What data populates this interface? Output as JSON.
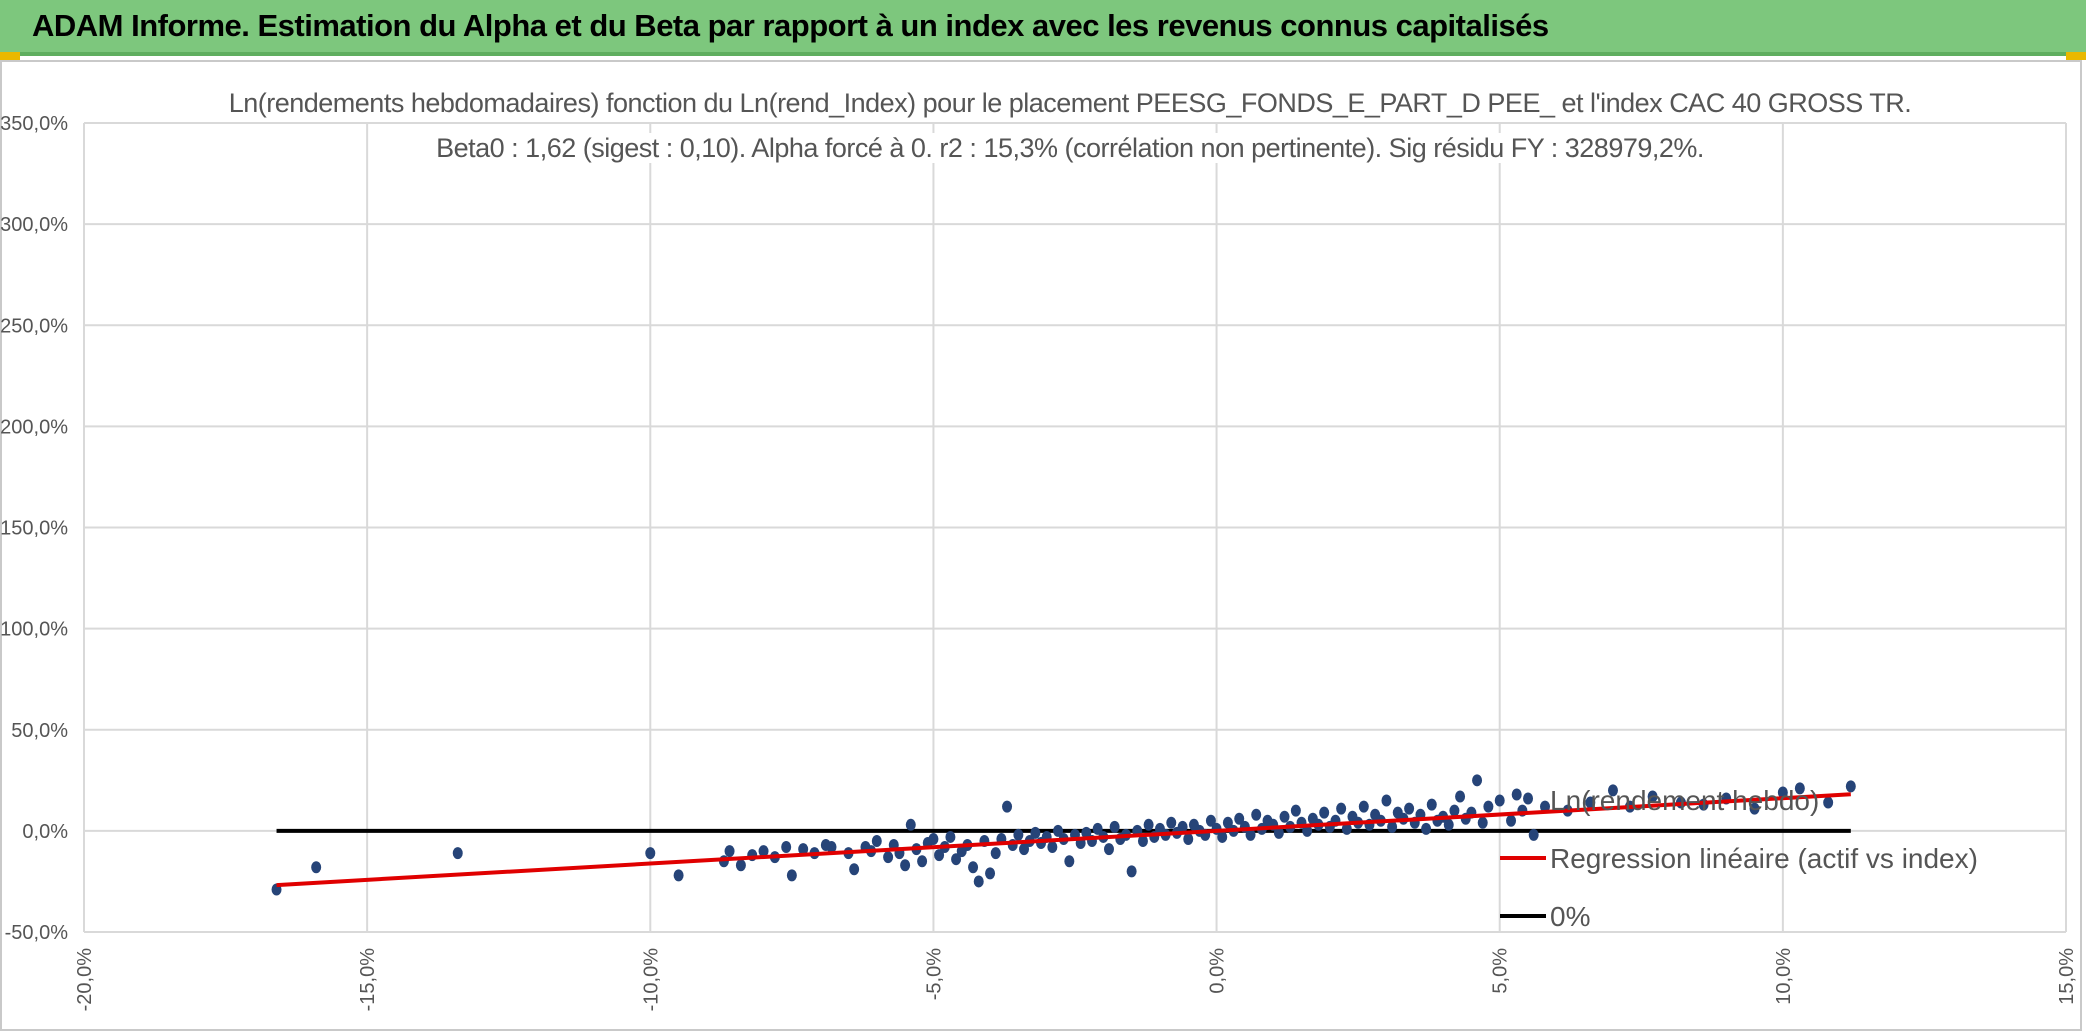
{
  "header": {
    "title": "ADAM Informe. Estimation du Alpha et du Beta par rapport à un index avec les revenus connus capitalisés"
  },
  "colors": {
    "header_bg": "#7dc77d",
    "points": "#264478",
    "regression": "#e00000",
    "zero_line": "#000000",
    "grid": "#d9d9d9"
  },
  "chart_data": {
    "type": "scatter",
    "title_line1": "Ln(rendements hebdomadaires) fonction du Ln(rend_Index) pour le placement PEESG_FONDS_E_PART_D PEE_ et l'index CAC 40 GROSS TR.",
    "title_line2": "Beta0 : 1,62 (sigest : 0,10). Alpha forcé à 0. r2 : 15,3% (corrélation non pertinente). Sig résidu FY : 328979,2%.",
    "xlim": [
      -0.2,
      0.15
    ],
    "ylim": [
      -0.5,
      3.5
    ],
    "x_ticks": [
      "-20,0%",
      "-15,0%",
      "-10,0%",
      "-5,0%",
      "0,0%",
      "5,0%",
      "10,0%",
      "15,0%"
    ],
    "y_ticks": [
      "-50,0%",
      "0,0%",
      "50,0%",
      "100,0%",
      "150,0%",
      "200,0%",
      "250,0%",
      "300,0%",
      "350,0%"
    ],
    "grid": true,
    "legend_position": "bottom-right",
    "series": [
      {
        "name": "Ln(rendement hebdo)",
        "kind": "scatter",
        "points": [
          [
            -0.166,
            -0.29
          ],
          [
            -0.159,
            -0.18
          ],
          [
            -0.134,
            -0.11
          ],
          [
            -0.1,
            -0.11
          ],
          [
            -0.095,
            -0.22
          ],
          [
            -0.087,
            -0.15
          ],
          [
            -0.086,
            -0.1
          ],
          [
            -0.084,
            -0.17
          ],
          [
            -0.082,
            -0.12
          ],
          [
            -0.08,
            -0.1
          ],
          [
            -0.078,
            -0.13
          ],
          [
            -0.076,
            -0.08
          ],
          [
            -0.075,
            -0.22
          ],
          [
            -0.073,
            -0.09
          ],
          [
            -0.071,
            -0.11
          ],
          [
            -0.069,
            -0.07
          ],
          [
            -0.068,
            -0.08
          ],
          [
            -0.065,
            -0.11
          ],
          [
            -0.064,
            -0.19
          ],
          [
            -0.062,
            -0.08
          ],
          [
            -0.061,
            -0.1
          ],
          [
            -0.06,
            -0.05
          ],
          [
            -0.058,
            -0.13
          ],
          [
            -0.057,
            -0.07
          ],
          [
            -0.056,
            -0.11
          ],
          [
            -0.055,
            -0.17
          ],
          [
            -0.054,
            0.03
          ],
          [
            -0.053,
            -0.09
          ],
          [
            -0.052,
            -0.15
          ],
          [
            -0.051,
            -0.06
          ],
          [
            -0.05,
            -0.04
          ],
          [
            -0.049,
            -0.12
          ],
          [
            -0.048,
            -0.08
          ],
          [
            -0.047,
            -0.03
          ],
          [
            -0.046,
            -0.14
          ],
          [
            -0.045,
            -0.1
          ],
          [
            -0.044,
            -0.07
          ],
          [
            -0.043,
            -0.18
          ],
          [
            -0.042,
            -0.25
          ],
          [
            -0.041,
            -0.05
          ],
          [
            -0.04,
            -0.21
          ],
          [
            -0.039,
            -0.11
          ],
          [
            -0.038,
            -0.04
          ],
          [
            -0.037,
            0.12
          ],
          [
            -0.036,
            -0.07
          ],
          [
            -0.035,
            -0.02
          ],
          [
            -0.034,
            -0.09
          ],
          [
            -0.033,
            -0.05
          ],
          [
            -0.032,
            -0.01
          ],
          [
            -0.031,
            -0.06
          ],
          [
            -0.03,
            -0.03
          ],
          [
            -0.029,
            -0.08
          ],
          [
            -0.028,
            0.0
          ],
          [
            -0.027,
            -0.04
          ],
          [
            -0.026,
            -0.15
          ],
          [
            -0.025,
            -0.02
          ],
          [
            -0.024,
            -0.06
          ],
          [
            -0.023,
            -0.01
          ],
          [
            -0.022,
            -0.05
          ],
          [
            -0.021,
            0.01
          ],
          [
            -0.02,
            -0.03
          ],
          [
            -0.019,
            -0.09
          ],
          [
            -0.018,
            0.02
          ],
          [
            -0.017,
            -0.04
          ],
          [
            -0.016,
            -0.02
          ],
          [
            -0.015,
            -0.2
          ],
          [
            -0.014,
            0.0
          ],
          [
            -0.013,
            -0.05
          ],
          [
            -0.012,
            0.03
          ],
          [
            -0.011,
            -0.03
          ],
          [
            -0.01,
            0.01
          ],
          [
            -0.009,
            -0.02
          ],
          [
            -0.008,
            0.04
          ],
          [
            -0.007,
            -0.01
          ],
          [
            -0.006,
            0.02
          ],
          [
            -0.005,
            -0.04
          ],
          [
            -0.004,
            0.03
          ],
          [
            -0.003,
            0.0
          ],
          [
            -0.002,
            -0.02
          ],
          [
            -0.001,
            0.05
          ],
          [
            0.0,
            0.01
          ],
          [
            0.001,
            -0.03
          ],
          [
            0.002,
            0.04
          ],
          [
            0.003,
            0.0
          ],
          [
            0.004,
            0.06
          ],
          [
            0.005,
            0.02
          ],
          [
            0.006,
            -0.02
          ],
          [
            0.007,
            0.08
          ],
          [
            0.008,
            0.01
          ],
          [
            0.009,
            0.05
          ],
          [
            0.01,
            0.03
          ],
          [
            0.011,
            -0.01
          ],
          [
            0.012,
            0.07
          ],
          [
            0.013,
            0.02
          ],
          [
            0.014,
            0.1
          ],
          [
            0.015,
            0.04
          ],
          [
            0.016,
            0.0
          ],
          [
            0.017,
            0.06
          ],
          [
            0.018,
            0.03
          ],
          [
            0.019,
            0.09
          ],
          [
            0.02,
            0.02
          ],
          [
            0.021,
            0.05
          ],
          [
            0.022,
            0.11
          ],
          [
            0.023,
            0.01
          ],
          [
            0.024,
            0.07
          ],
          [
            0.025,
            0.04
          ],
          [
            0.026,
            0.12
          ],
          [
            0.027,
            0.03
          ],
          [
            0.028,
            0.08
          ],
          [
            0.029,
            0.05
          ],
          [
            0.03,
            0.15
          ],
          [
            0.031,
            0.02
          ],
          [
            0.032,
            0.09
          ],
          [
            0.033,
            0.06
          ],
          [
            0.034,
            0.11
          ],
          [
            0.035,
            0.04
          ],
          [
            0.036,
            0.08
          ],
          [
            0.037,
            0.01
          ],
          [
            0.038,
            0.13
          ],
          [
            0.039,
            0.05
          ],
          [
            0.04,
            0.07
          ],
          [
            0.041,
            0.03
          ],
          [
            0.042,
            0.1
          ],
          [
            0.043,
            0.17
          ],
          [
            0.044,
            0.06
          ],
          [
            0.045,
            0.09
          ],
          [
            0.046,
            0.25
          ],
          [
            0.047,
            0.04
          ],
          [
            0.048,
            0.12
          ],
          [
            0.05,
            0.15
          ],
          [
            0.052,
            0.05
          ],
          [
            0.053,
            0.18
          ],
          [
            0.054,
            0.1
          ],
          [
            0.055,
            0.16
          ],
          [
            0.056,
            -0.02
          ],
          [
            0.058,
            0.12
          ],
          [
            0.062,
            0.1
          ],
          [
            0.066,
            0.14
          ],
          [
            0.07,
            0.2
          ],
          [
            0.073,
            0.12
          ],
          [
            0.077,
            0.17
          ],
          [
            0.082,
            0.14
          ],
          [
            0.086,
            0.13
          ],
          [
            0.09,
            0.16
          ],
          [
            0.095,
            0.11
          ],
          [
            0.1,
            0.19
          ],
          [
            0.103,
            0.21
          ],
          [
            0.108,
            0.14
          ],
          [
            0.112,
            0.22
          ]
        ]
      },
      {
        "name": "Regression linéaire (actif vs index)",
        "kind": "line",
        "x": [
          -0.166,
          0.112
        ],
        "y": [
          -0.268,
          0.181
        ]
      },
      {
        "name": "0%",
        "kind": "line",
        "x": [
          -0.166,
          0.112
        ],
        "y": [
          0.0,
          0.0
        ]
      }
    ]
  }
}
